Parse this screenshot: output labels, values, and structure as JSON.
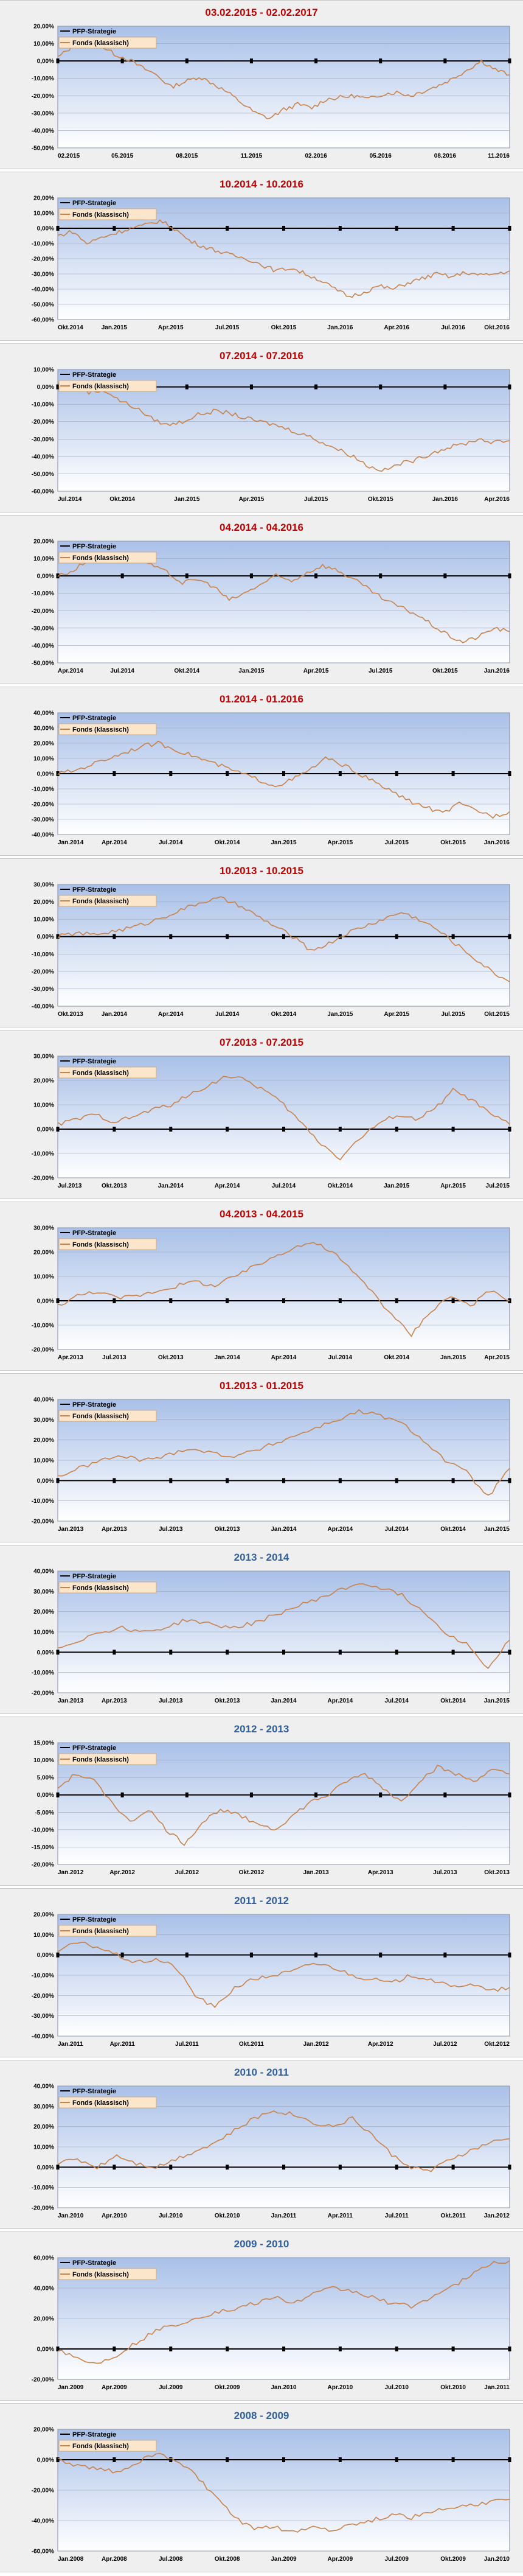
{
  "legend": {
    "strategy": "PFP-Strategie",
    "fund": "Fonds (klassisch)"
  },
  "colors": {
    "strategy": "#000000",
    "fund": "#c8824a",
    "plot_top": "#a9c0e8",
    "plot_bottom": "#ffffff",
    "grid": "#9aa6b8",
    "title_red": "#c00000",
    "title_blue": "#2f5f9e"
  },
  "chart_data": [
    {
      "type": "line",
      "title": "03.02.2015 - 02.02.2017",
      "title_color": "red",
      "yticks": [
        "20,00%",
        "10,00%",
        "0,00%",
        "-10,00%",
        "-20,00%",
        "-30,00%",
        "-40,00%",
        "-50,00%"
      ],
      "ylim": [
        -50,
        20
      ],
      "xticks": [
        "02.2015",
        "05.2015",
        "08.2015",
        "11.2015",
        "02.2016",
        "05.2016",
        "08.2016",
        "11.2016"
      ],
      "series": [
        {
          "name": "PFP-Strategie",
          "values": [
            0,
            0
          ]
        },
        {
          "name": "Fonds (klassisch)",
          "values": [
            2,
            8,
            12,
            9,
            4,
            1,
            -4,
            -8,
            -15,
            -12,
            -9,
            -13,
            -18,
            -24,
            -30,
            -33,
            -28,
            -25,
            -27,
            -22,
            -21,
            -20,
            -22,
            -19,
            -18,
            -20,
            -17,
            -14,
            -10,
            -5,
            0,
            -5,
            -8
          ]
        }
      ]
    },
    {
      "type": "line",
      "title": "10.2014 - 10.2016",
      "title_color": "red",
      "yticks": [
        "20,00%",
        "10,00%",
        "0,00%",
        "-10,00%",
        "-20,00%",
        "-30,00%",
        "-40,00%",
        "-50,00%",
        "-60,00%"
      ],
      "ylim": [
        -60,
        20
      ],
      "xticks": [
        "Okt.2014",
        "Jan.2015",
        "Apr.2015",
        "Jul.2015",
        "Okt.2015",
        "Jan.2016",
        "Apr.2016",
        "Jul.2016",
        "Okt.2016"
      ],
      "series": [
        {
          "name": "PFP-Strategie",
          "values": [
            0,
            0
          ]
        },
        {
          "name": "Fonds (klassisch)",
          "values": [
            -5,
            -2,
            -10,
            -6,
            -3,
            0,
            2,
            5,
            0,
            -8,
            -12,
            -15,
            -18,
            -20,
            -24,
            -28,
            -26,
            -30,
            -34,
            -40,
            -45,
            -42,
            -38,
            -40,
            -36,
            -33,
            -30,
            -32,
            -29,
            -31,
            -30,
            -28
          ]
        }
      ]
    },
    {
      "type": "line",
      "title": "07.2014 - 07.2016",
      "title_color": "red",
      "yticks": [
        "10,00%",
        "0,00%",
        "-10,00%",
        "-20,00%",
        "-30,00%",
        "-40,00%",
        "-50,00%",
        "-60,00%"
      ],
      "ylim": [
        -60,
        10
      ],
      "xticks": [
        "Jul.2014",
        "Okt.2014",
        "Jan.2015",
        "Apr.2015",
        "Jul.2015",
        "Okt.2015",
        "Jan.2016",
        "Apr.2016"
      ],
      "series": [
        {
          "name": "PFP-Strategie",
          "values": [
            0,
            0
          ]
        },
        {
          "name": "Fonds (klassisch)",
          "values": [
            2,
            0,
            -3,
            -2,
            -8,
            -12,
            -18,
            -22,
            -20,
            -16,
            -14,
            -15,
            -18,
            -20,
            -22,
            -25,
            -28,
            -32,
            -36,
            -40,
            -46,
            -48,
            -44,
            -42,
            -38,
            -35,
            -33,
            -30,
            -32,
            -31
          ]
        }
      ]
    },
    {
      "type": "line",
      "title": "04.2014 - 04.2016",
      "title_color": "red",
      "yticks": [
        "20,00%",
        "10,00%",
        "0,00%",
        "-10,00%",
        "-20,00%",
        "-30,00%",
        "-40,00%",
        "-50,00%"
      ],
      "ylim": [
        -50,
        20
      ],
      "xticks": [
        "Apr.2014",
        "Jul.2014",
        "Okt.2014",
        "Jan.2015",
        "Apr.2015",
        "Jul.2015",
        "Okt.2015",
        "Jan.2016"
      ],
      "series": [
        {
          "name": "PFP-Strategie",
          "values": [
            0,
            0
          ]
        },
        {
          "name": "Fonds (klassisch)",
          "values": [
            0,
            3,
            10,
            12,
            14,
            11,
            6,
            2,
            -4,
            -2,
            -6,
            -14,
            -10,
            -5,
            0,
            -3,
            2,
            6,
            3,
            -2,
            -8,
            -14,
            -18,
            -22,
            -28,
            -34,
            -38,
            -35,
            -30,
            -32
          ]
        }
      ]
    },
    {
      "type": "line",
      "title": "01.2014 - 01.2016",
      "title_color": "red",
      "yticks": [
        "40,00%",
        "30,00%",
        "20,00%",
        "10,00%",
        "0,00%",
        "-10,00%",
        "-20,00%",
        "-30,00%",
        "-40,00%"
      ],
      "ylim": [
        -40,
        40
      ],
      "xticks": [
        "Jan.2014",
        "Apr.2014",
        "Jul.2014",
        "Okt.2014",
        "Jan.2015",
        "Apr.2015",
        "Jul.2015",
        "Okt.2015",
        "Jan.2016"
      ],
      "series": [
        {
          "name": "PFP-Strategie",
          "values": [
            0,
            0
          ]
        },
        {
          "name": "Fonds (klassisch)",
          "values": [
            0,
            2,
            6,
            10,
            14,
            18,
            20,
            16,
            12,
            8,
            4,
            0,
            -4,
            -8,
            -4,
            2,
            10,
            6,
            0,
            -6,
            -12,
            -18,
            -22,
            -26,
            -20,
            -24,
            -28,
            -25
          ]
        }
      ]
    },
    {
      "type": "line",
      "title": "10.2013 - 10.2015",
      "title_color": "red",
      "yticks": [
        "30,00%",
        "20,00%",
        "10,00%",
        "0,00%",
        "-10,00%",
        "-20,00%",
        "-30,00%",
        "-40,00%"
      ],
      "ylim": [
        -40,
        30
      ],
      "xticks": [
        "Okt.2013",
        "Jan.2014",
        "Apr.2014",
        "Jul.2014",
        "Okt.2014",
        "Jan.2015",
        "Apr.2015",
        "Jul.2015",
        "Okt.2015"
      ],
      "series": [
        {
          "name": "PFP-Strategie",
          "values": [
            0,
            0
          ]
        },
        {
          "name": "Fonds (klassisch)",
          "values": [
            0,
            2,
            1,
            3,
            5,
            8,
            12,
            16,
            20,
            22,
            18,
            12,
            6,
            0,
            -8,
            -4,
            2,
            6,
            10,
            14,
            10,
            4,
            -4,
            -12,
            -20,
            -26
          ]
        }
      ]
    },
    {
      "type": "line",
      "title": "07.2013 - 07.2015",
      "title_color": "red",
      "yticks": [
        "30,00%",
        "20,00%",
        "10,00%",
        "0,00%",
        "-10,00%",
        "-20,00%"
      ],
      "ylim": [
        -20,
        30
      ],
      "xticks": [
        "Jul.2013",
        "Okt.2013",
        "Jan.2014",
        "Apr.2014",
        "Jul.2014",
        "Okt.2014",
        "Jan.2015",
        "Apr.2015",
        "Jul.2015"
      ],
      "series": [
        {
          "name": "PFP-Strategie",
          "values": [
            0,
            0
          ]
        },
        {
          "name": "Fonds (klassisch)",
          "values": [
            2,
            4,
            6,
            3,
            5,
            8,
            10,
            14,
            18,
            22,
            20,
            16,
            10,
            2,
            -6,
            -12,
            -4,
            2,
            6,
            4,
            8,
            16,
            12,
            6,
            2
          ]
        }
      ]
    },
    {
      "type": "line",
      "title": "04.2013 - 04.2015",
      "title_color": "red",
      "yticks": [
        "30,00%",
        "20,00%",
        "10,00%",
        "0,00%",
        "-10,00%",
        "-20,00%"
      ],
      "ylim": [
        -20,
        30
      ],
      "xticks": [
        "Apr.2013",
        "Jul.2013",
        "Okt.2013",
        "Jan.2014",
        "Apr.2014",
        "Jul.2014",
        "Okt.2014",
        "Jan.2015",
        "Apr.2015"
      ],
      "series": [
        {
          "name": "PFP-Strategie",
          "values": [
            0,
            0
          ]
        },
        {
          "name": "Fonds (klassisch)",
          "values": [
            -2,
            2,
            4,
            1,
            2,
            4,
            6,
            8,
            6,
            10,
            14,
            18,
            22,
            24,
            20,
            12,
            4,
            -6,
            -14,
            -4,
            2,
            -2,
            4,
            0
          ]
        }
      ]
    },
    {
      "type": "line",
      "title": "01.2013 - 01.2015",
      "title_color": "red",
      "yticks": [
        "40,00%",
        "30,00%",
        "20,00%",
        "10,00%",
        "0,00%",
        "-10,00%",
        "-20,00%"
      ],
      "ylim": [
        -20,
        40
      ],
      "xticks": [
        "Jan.2013",
        "Apr.2013",
        "Jul.2013",
        "Okt.2013",
        "Jan.2014",
        "Apr.2014",
        "Jul.2014",
        "Okt.2014",
        "Jan.2015"
      ],
      "series": [
        {
          "name": "PFP-Strategie",
          "values": [
            0,
            0
          ]
        },
        {
          "name": "Fonds (klassisch)",
          "values": [
            2,
            6,
            10,
            12,
            10,
            12,
            16,
            14,
            12,
            14,
            18,
            22,
            26,
            30,
            34,
            32,
            28,
            20,
            10,
            4,
            -8,
            6
          ]
        }
      ]
    },
    {
      "type": "line",
      "title": "2013 - 2014",
      "title_color": "blue",
      "yticks": [
        "40,00%",
        "30,00%",
        "20,00%",
        "10,00%",
        "0,00%",
        "-10,00%",
        "-20,00%"
      ],
      "ylim": [
        -20,
        40
      ],
      "xticks": [
        "Jan.2013",
        "Apr.2013",
        "Jul.2013",
        "Okt.2013",
        "Jan.2014",
        "Apr.2014",
        "Jul.2014",
        "Okt.2014",
        "Jan.2015"
      ],
      "series": [
        {
          "name": "PFP-Strategie",
          "values": [
            0,
            0
          ]
        },
        {
          "name": "Fonds (klassisch)",
          "values": [
            2,
            6,
            10,
            12,
            10,
            12,
            16,
            14,
            12,
            14,
            18,
            22,
            26,
            30,
            34,
            32,
            28,
            20,
            10,
            4,
            -8,
            6
          ]
        }
      ]
    },
    {
      "type": "line",
      "title": "2012 - 2013",
      "title_color": "blue",
      "yticks": [
        "15,00%",
        "10,00%",
        "5,00%",
        "0,00%",
        "-5,00%",
        "-10,00%",
        "-15,00%",
        "-20,00%"
      ],
      "ylim": [
        -20,
        15
      ],
      "xticks": [
        "Jan.2012",
        "Apr.2012",
        "Jul.2012",
        "Okt.2012",
        "Jan.2013",
        "Apr.2013",
        "Jul.2013",
        "Okt.2013"
      ],
      "series": [
        {
          "name": "PFP-Strategie",
          "values": [
            0,
            0
          ]
        },
        {
          "name": "Fonds (klassisch)",
          "values": [
            2,
            6,
            4,
            -2,
            -8,
            -4,
            -10,
            -14,
            -8,
            -4,
            -6,
            -8,
            -10,
            -6,
            -2,
            0,
            4,
            6,
            2,
            -2,
            4,
            8,
            6,
            4,
            7,
            6
          ]
        }
      ]
    },
    {
      "type": "line",
      "title": "2011 - 2012",
      "title_color": "blue",
      "yticks": [
        "20,00%",
        "10,00%",
        "0,00%",
        "-10,00%",
        "-20,00%",
        "-30,00%",
        "-40,00%"
      ],
      "ylim": [
        -40,
        20
      ],
      "xticks": [
        "Jan.2011",
        "Apr.2011",
        "Jul.2011",
        "Okt.2011",
        "Jan.2012",
        "Apr.2012",
        "Jul.2012",
        "Okt.2012"
      ],
      "series": [
        {
          "name": "PFP-Strategie",
          "values": [
            0,
            0
          ]
        },
        {
          "name": "Fonds (klassisch)",
          "values": [
            2,
            6,
            4,
            0,
            -4,
            -2,
            -6,
            -20,
            -26,
            -16,
            -12,
            -10,
            -8,
            -4,
            -6,
            -10,
            -12,
            -14,
            -10,
            -12,
            -16,
            -14,
            -18,
            -16
          ]
        }
      ]
    },
    {
      "type": "line",
      "title": "2010 - 2011",
      "title_color": "blue",
      "yticks": [
        "40,00%",
        "30,00%",
        "20,00%",
        "10,00%",
        "0,00%",
        "-10,00%",
        "-20,00%"
      ],
      "ylim": [
        -20,
        40
      ],
      "xticks": [
        "Jan.2010",
        "Apr.2010",
        "Jul.2010",
        "Okt.2010",
        "Jan.2011",
        "Apr.2011",
        "Jul.2011",
        "Okt.2011",
        "Jan.2012"
      ],
      "series": [
        {
          "name": "PFP-Strategie",
          "values": [
            0,
            0
          ]
        },
        {
          "name": "Fonds (klassisch)",
          "values": [
            2,
            4,
            0,
            6,
            2,
            0,
            4,
            8,
            12,
            18,
            24,
            28,
            26,
            22,
            20,
            24,
            16,
            6,
            0,
            -2,
            4,
            8,
            12,
            14
          ]
        }
      ]
    },
    {
      "type": "line",
      "title": "2009 - 2010",
      "title_color": "blue",
      "yticks": [
        "60,00%",
        "40,00%",
        "20,00%",
        "0,00%",
        "-20,00%"
      ],
      "ylim": [
        -20,
        60
      ],
      "xticks": [
        "Jan.2009",
        "Apr.2009",
        "Jul.2009",
        "Okt.2009",
        "Jan.2010",
        "Apr.2010",
        "Jul.2010",
        "Okt.2010",
        "Jan.2011"
      ],
      "series": [
        {
          "name": "PFP-Strategie",
          "values": [
            0,
            0
          ]
        },
        {
          "name": "Fonds (klassisch)",
          "values": [
            0,
            -6,
            -10,
            -4,
            4,
            12,
            16,
            20,
            24,
            26,
            30,
            34,
            30,
            36,
            40,
            38,
            34,
            30,
            28,
            34,
            40,
            48,
            56,
            58
          ]
        }
      ]
    },
    {
      "type": "line",
      "title": "2008 - 2009",
      "title_color": "blue",
      "yticks": [
        "20,00%",
        "0,00%",
        "-20,00%",
        "-40,00%",
        "-60,00%"
      ],
      "ylim": [
        -60,
        20
      ],
      "xticks": [
        "Jan.2008",
        "Apr.2008",
        "Jul.2008",
        "Okt.2008",
        "Jan.2009",
        "Apr.2009",
        "Jul.2009",
        "Okt.2009",
        "Jan.2010"
      ],
      "series": [
        {
          "name": "PFP-Strategie",
          "values": [
            0,
            0
          ]
        },
        {
          "name": "Fonds (klassisch)",
          "values": [
            0,
            -4,
            -6,
            -8,
            -2,
            4,
            0,
            -10,
            -24,
            -38,
            -46,
            -44,
            -48,
            -44,
            -46,
            -42,
            -40,
            -36,
            -38,
            -34,
            -32,
            -30,
            -28,
            -26
          ]
        }
      ]
    }
  ]
}
